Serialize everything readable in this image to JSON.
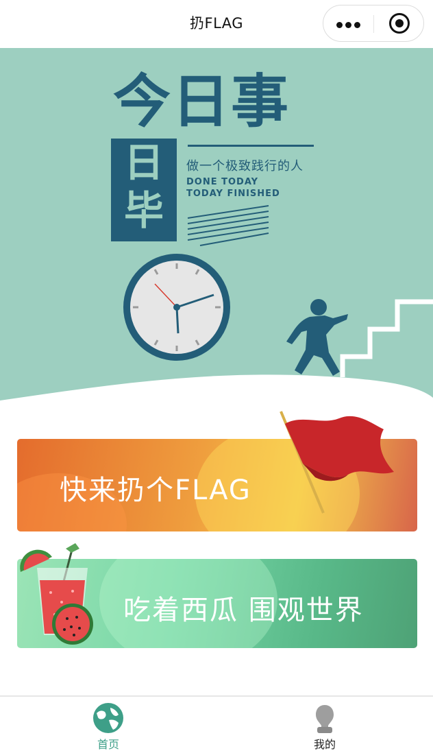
{
  "navbar": {
    "title": "扔FLAG",
    "menu_icon": "more-dots-icon",
    "close_icon": "target-close-icon"
  },
  "hero": {
    "headline": "今日事",
    "block_text": [
      "日",
      "毕"
    ],
    "slogan": "做一个极致践行的人",
    "english_line1": "DONE TODAY",
    "english_line2": "TODAY FINISHED",
    "illustrations": [
      "clock-icon",
      "climbing-man-icon",
      "stairs-icon"
    ],
    "background_color": "#9dcfc0",
    "accent_color": "#235d78"
  },
  "banners": [
    {
      "label": "快来扔个FLAG",
      "icon": "red-flag-icon",
      "colors": [
        "#e46c2d",
        "#f3c84a",
        "#d8654a"
      ]
    },
    {
      "label": "吃着西瓜 围观世界",
      "icon": "watermelon-juice-icon",
      "colors": [
        "#9be4b6",
        "#58b888"
      ]
    }
  ],
  "tabbar": {
    "items": [
      {
        "label": "首页",
        "icon": "globe-icon",
        "active": true,
        "color": "#3e9f88"
      },
      {
        "label": "我的",
        "icon": "user-profile-icon",
        "active": false,
        "color": "#222222"
      }
    ]
  }
}
